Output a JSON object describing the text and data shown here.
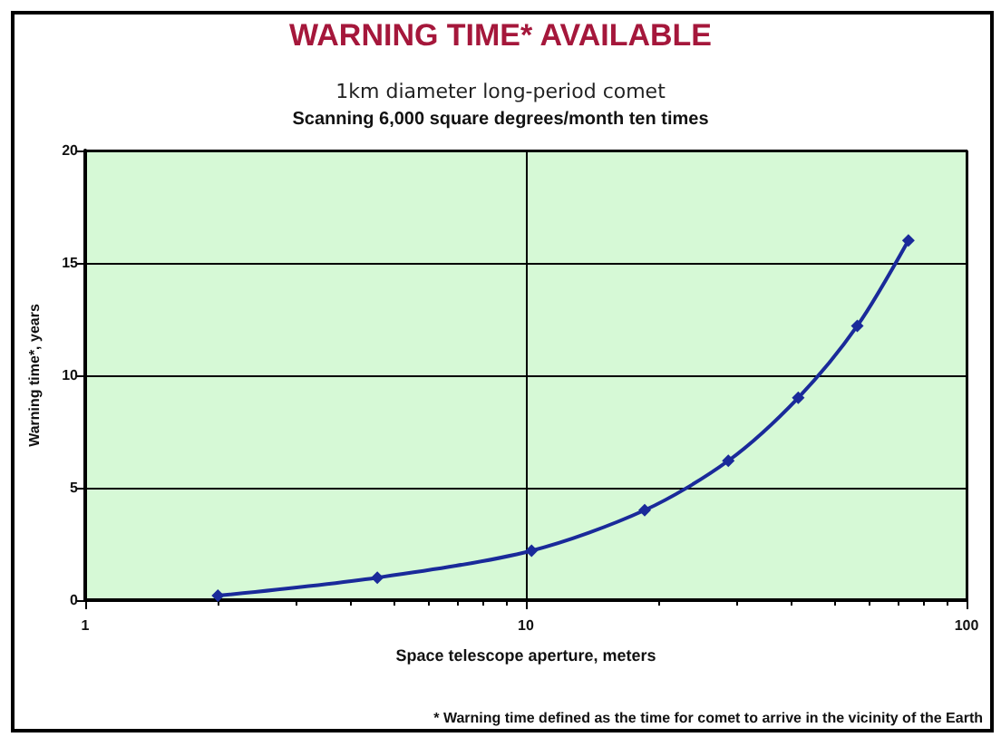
{
  "chart_data": {
    "type": "line",
    "title": "WARNING TIME* AVAILABLE",
    "subtitle": "1km diameter long-period comet",
    "xlabel": "Space telescope aperture, meters",
    "ylabel": "Warning time*, years",
    "annotations": [
      "Scanning 6,000 square degrees/month ten times",
      "* Warning time defined as the time for comet to arrive in the vicinity of the Earth"
    ],
    "x": [
      2,
      4.6,
      10.3,
      18.6,
      28.8,
      41.5,
      56.5,
      73.8
    ],
    "series": [
      {
        "color": "#1a2a9a",
        "values": [
          0.2,
          1.0,
          2.2,
          4.0,
          6.2,
          9.0,
          12.2,
          16.0
        ]
      }
    ],
    "log": "x",
    "xlim": [
      1,
      100
    ],
    "xticks": [
      1,
      10,
      100
    ],
    "ylim": [
      0,
      20
    ],
    "yticks": [
      0,
      5,
      10,
      15,
      20
    ],
    "grid": true,
    "marker": "diamond",
    "line_style": "solid"
  }
}
